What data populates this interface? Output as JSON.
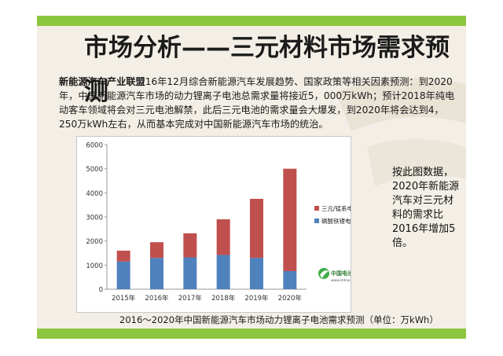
{
  "slide": {
    "title": "市场分析——三元材料市场需求预测",
    "intro_bold": "新能源汽车产业联盟",
    "intro_rest": "16年12月综合新能源汽车发展趋势、国家政策等相关因素预测：到2020年，中国新能源汽车市场的动力锂离子电池总需求量将接近5，000万kWh；预计2018年纯电动客车领域将会对三元电池解禁，此后三元电池的需求量会大爆发，到2020年将会达到4，250万kWh左右，从而基本完成对中国新能源汽车市场的统治。",
    "note": "按此图数据，2020年新能源汽车对三元材料的需求比2016年增加5倍。",
    "caption": "2016～2020年中国新能源汽车市场动力锂离子电池需求预测（单位：万kWh）",
    "watermark_text": "中国电池网",
    "watermark_url": "www.itdcw.com"
  },
  "chart_data": {
    "type": "bar",
    "stacked": true,
    "categories": [
      "2015年",
      "2016年",
      "2017年",
      "2018年",
      "2019年",
      "2020年"
    ],
    "series": [
      {
        "name": "磷酸铁锂电池",
        "color": "#4f81bd",
        "values": [
          1150,
          1300,
          1320,
          1420,
          1300,
          750
        ]
      },
      {
        "name": "三元/锰系电池",
        "color": "#c0504d",
        "values": [
          450,
          650,
          1000,
          1480,
          2450,
          4250
        ]
      }
    ],
    "ylim": [
      0,
      6000
    ],
    "yticks": [
      "0",
      "1000",
      "2000",
      "3000",
      "4000",
      "5000",
      "6000"
    ],
    "legend_position": "right",
    "grid": false
  }
}
